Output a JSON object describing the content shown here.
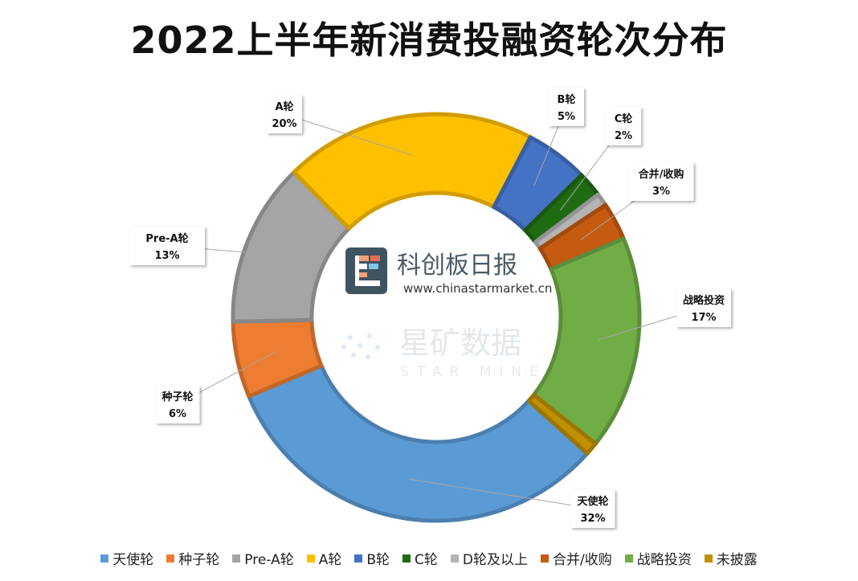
{
  "chart_data": {
    "type": "pie",
    "title": "2022上半年新消费投融资轮次分布",
    "categories": [
      "天使轮",
      "种子轮",
      "Pre-A轮",
      "A轮",
      "B轮",
      "C轮",
      "D轮及以上",
      "合并/收购",
      "战略投资",
      "未披露"
    ],
    "values": [
      32,
      6,
      13,
      20,
      5,
      2,
      1,
      3,
      17,
      1
    ],
    "data_labels": {
      "天使轮": "32%",
      "种子轮": "6%",
      "Pre-A轮": "13%",
      "A轮": "20%",
      "B轮": "5%",
      "C轮": "2%",
      "合并/收购": "3%",
      "战略投资": "17%"
    },
    "colors": [
      "#5b9bd5",
      "#ed7d31",
      "#a5a5a5",
      "#ffc000",
      "#4472c4",
      "#1f6b12",
      "#b4b4b4",
      "#c55a11",
      "#70ad47",
      "#bf9000"
    ],
    "legend_position": "bottom",
    "donut": true
  },
  "watermark": {
    "brand_name": "科创板日报",
    "brand_url": "www.chinastarmarket.cn",
    "mine_name": "星矿数据",
    "mine_en": "STAR MINE"
  }
}
